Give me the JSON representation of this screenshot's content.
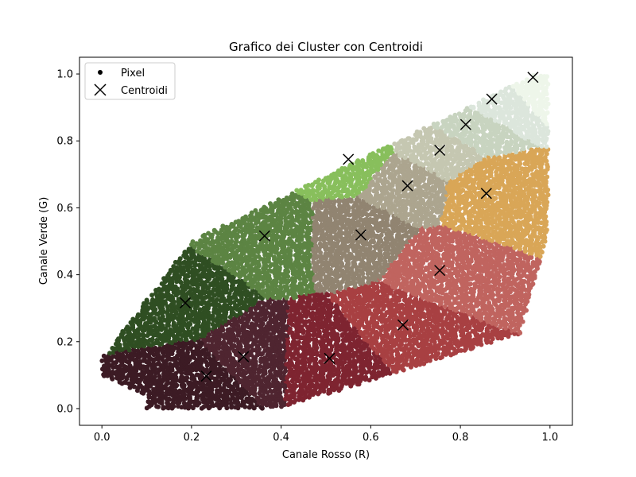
{
  "chart_data": {
    "type": "scatter",
    "title": "Grafico dei Cluster con Centroidi",
    "xlabel": "Canale Rosso (R)",
    "ylabel": "Canale Verde (G)",
    "xlim": [
      -0.05,
      1.05
    ],
    "ylim": [
      -0.05,
      1.05
    ],
    "xticks": [
      "0.0",
      "0.2",
      "0.4",
      "0.6",
      "0.8",
      "1.0"
    ],
    "yticks": [
      "0.0",
      "0.2",
      "0.4",
      "0.6",
      "0.8",
      "1.0"
    ],
    "grid": false,
    "legend": {
      "placement": "upper left",
      "entries": [
        "Pixel",
        "Centroidi"
      ]
    },
    "series": [
      {
        "name": "Pixel",
        "marker": "dot",
        "clusters": [
          {
            "color": "#3c1b24",
            "center": [
              0.233,
              0.097
            ]
          },
          {
            "color": "#4f2530",
            "center": [
              0.316,
              0.155
            ]
          },
          {
            "color": "#7e2430",
            "center": [
              0.508,
              0.15
            ]
          },
          {
            "color": "#a84042",
            "center": [
              0.672,
              0.25
            ]
          },
          {
            "color": "#c0645f",
            "center": [
              0.754,
              0.413
            ]
          },
          {
            "color": "#2f4e22",
            "center": [
              0.186,
              0.316
            ]
          },
          {
            "color": "#5c8443",
            "center": [
              0.363,
              0.516
            ]
          },
          {
            "color": "#918471",
            "center": [
              0.578,
              0.519
            ]
          },
          {
            "color": "#88bf5c",
            "center": [
              0.55,
              0.745
            ]
          },
          {
            "color": "#aca58f",
            "center": [
              0.682,
              0.666
            ]
          },
          {
            "color": "#c5c7b1",
            "center": [
              0.754,
              0.772
            ]
          },
          {
            "color": "#d9a657",
            "center": [
              0.858,
              0.643
            ]
          },
          {
            "color": "#c8d4c0",
            "center": [
              0.812,
              0.849
            ]
          },
          {
            "color": "#dce6dc",
            "center": [
              0.87,
              0.925
            ]
          },
          {
            "color": "#eef6ea",
            "center": [
              0.962,
              0.99
            ]
          }
        ]
      },
      {
        "name": "Centroidi",
        "marker": "x",
        "color": "#000000",
        "points": [
          [
            0.233,
            0.097
          ],
          [
            0.316,
            0.155
          ],
          [
            0.508,
            0.15
          ],
          [
            0.672,
            0.25
          ],
          [
            0.754,
            0.413
          ],
          [
            0.186,
            0.316
          ],
          [
            0.363,
            0.516
          ],
          [
            0.578,
            0.519
          ],
          [
            0.55,
            0.745
          ],
          [
            0.682,
            0.666
          ],
          [
            0.754,
            0.772
          ],
          [
            0.858,
            0.643
          ],
          [
            0.812,
            0.849
          ],
          [
            0.87,
            0.925
          ],
          [
            0.962,
            0.99
          ]
        ]
      }
    ]
  }
}
